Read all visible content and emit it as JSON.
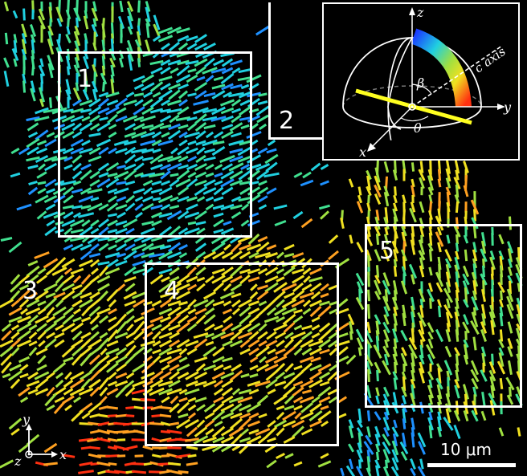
{
  "region_labels": [
    "1",
    "2",
    "3",
    "4",
    "5"
  ],
  "scale_bar": {
    "label": "10 μm"
  },
  "inset": {
    "axis_labels": {
      "z": "z",
      "y": "y",
      "x": "x"
    },
    "c_axis_label": "c axis",
    "angle_beta": "β",
    "angle_theta": "θ"
  },
  "corner_axes": {
    "y": "y",
    "x": "x",
    "z": "z"
  },
  "colors": {
    "frame": "#ffffff",
    "background": "#000000",
    "colormap": [
      "#1a3cff",
      "#1e90ff",
      "#20d0e0",
      "#40e090",
      "#a0e040",
      "#f0e020",
      "#ffa020",
      "#ff3010"
    ],
    "c_axis_bar": "#ffff20"
  }
}
